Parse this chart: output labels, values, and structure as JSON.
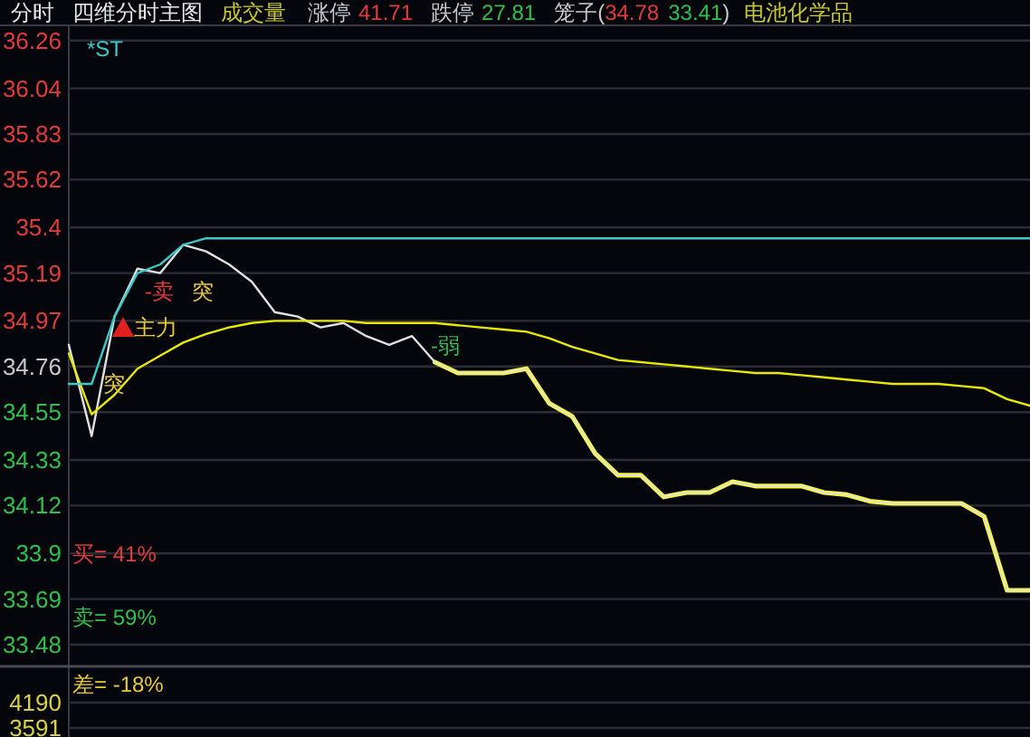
{
  "chart_data": [
    {
      "type": "line",
      "title": "分时",
      "subtitle": "四维分时主图",
      "categories": [
        null,
        null,
        null,
        null,
        null,
        null,
        null,
        null,
        null,
        null,
        null,
        null,
        null,
        null,
        null,
        null,
        null,
        null,
        null,
        null,
        null,
        null,
        null,
        null,
        null,
        null,
        null,
        null,
        null,
        null,
        null,
        null,
        null,
        null,
        null,
        null,
        null,
        null,
        null,
        null,
        null,
        null,
        null
      ],
      "series": [
        {
          "color": "#e0e0e0",
          "values": [
            34.86,
            34.44,
            34.99,
            35.21,
            35.19,
            35.32,
            35.29,
            35.23,
            35.15,
            35.01,
            34.99,
            34.94,
            34.96,
            34.9,
            34.86,
            34.9,
            34.78,
            34.73,
            34.73,
            34.73,
            34.75,
            34.59,
            34.53,
            34.36,
            34.26,
            34.26,
            34.16,
            34.18,
            34.18,
            34.23,
            34.21,
            34.21,
            34.21,
            34.18,
            34.17,
            34.14,
            34.13,
            34.13,
            34.13,
            34.13,
            34.07,
            33.73,
            33.73
          ]
        },
        {
          "color": "#e8e800",
          "values": [
            34.82,
            34.54,
            34.63,
            34.75,
            34.81,
            34.87,
            34.91,
            34.94,
            34.96,
            34.97,
            34.97,
            34.97,
            34.97,
            34.96,
            34.96,
            34.96,
            34.96,
            34.95,
            34.94,
            34.93,
            34.92,
            34.89,
            34.85,
            34.82,
            34.79,
            34.78,
            34.77,
            34.76,
            34.75,
            34.74,
            34.73,
            34.73,
            34.72,
            34.71,
            34.7,
            34.69,
            34.68,
            34.68,
            34.68,
            34.67,
            34.66,
            34.61,
            34.58
          ]
        },
        {
          "color": "#3cc8c8",
          "values": [
            34.68,
            34.68,
            34.99,
            35.19,
            35.23,
            35.32,
            35.35,
            35.35,
            35.35,
            35.35,
            35.35,
            35.35,
            35.35,
            35.35,
            35.35,
            35.35,
            35.35,
            35.35,
            35.35,
            35.35,
            35.35,
            35.35,
            35.35,
            35.35,
            35.35,
            35.35,
            35.35,
            35.35,
            35.35,
            35.35,
            35.35,
            35.35,
            35.35,
            35.35,
            35.35,
            35.35,
            35.35,
            35.35,
            35.35,
            35.35,
            35.35,
            35.35,
            35.35
          ]
        },
        {
          "color": "#ffff00",
          "values": [
            null,
            null,
            null,
            null,
            null,
            null,
            null,
            null,
            null,
            null,
            null,
            null,
            null,
            null,
            null,
            null,
            34.78,
            34.73,
            34.73,
            34.73,
            34.75,
            34.59,
            34.53,
            34.36,
            34.26,
            34.26,
            34.16,
            34.18,
            34.18,
            34.23,
            34.21,
            34.21,
            34.21,
            34.18,
            34.17,
            34.14,
            34.13,
            34.13,
            34.13,
            34.13,
            34.07,
            33.73,
            33.73
          ]
        }
      ],
      "ylim": [
        33.38,
        36.33
      ],
      "yticks": [
        36.26,
        36.04,
        35.83,
        35.62,
        35.4,
        35.19,
        34.97,
        34.76,
        34.55,
        34.33,
        34.12,
        33.9,
        33.69,
        33.48
      ],
      "grid": "y",
      "tick_labels": "y",
      "annotations": [
        "成交量",
        "涨停",
        "41.71",
        "跌停",
        "27.81",
        "笼子(",
        "34.78",
        "33.41",
        ")",
        "电池化学品",
        "*ST",
        "主力",
        "突",
        "突",
        "-卖",
        "-弱",
        "买= 41%",
        "卖= 59%",
        "差= -18%"
      ]
    },
    {
      "type": "other",
      "annotations": [
        "4190",
        "3591"
      ]
    }
  ]
}
